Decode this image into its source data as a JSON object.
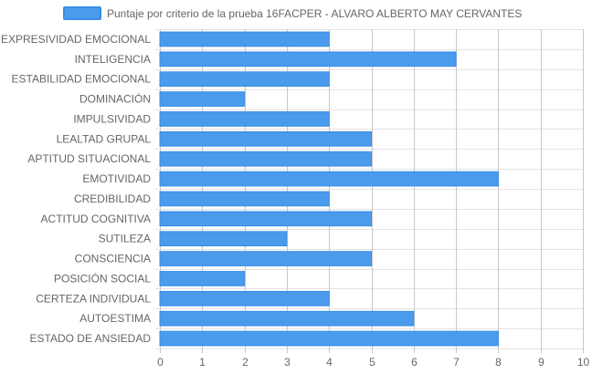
{
  "chart_data": {
    "type": "bar",
    "orientation": "horizontal",
    "legend": {
      "position": "top",
      "label": "Puntaje por criterio de la prueba 16FACPER - ALVARO ALBERTO MAY CERVANTES"
    },
    "categories": [
      "EXPRESIVIDAD EMOCIONAL",
      "INTELIGENCIA",
      "ESTABILIDAD EMOCIONAL",
      "DOMINACIÓN",
      "IMPULSIVIDAD",
      "LEALTAD GRUPAL",
      "APTITUD SITUACIONAL",
      "EMOTIVIDAD",
      "CREDIBILIDAD",
      "ACTITUD COGNITIVA",
      "SUTILEZA",
      "CONSCIENCIA",
      "POSICIÓN SOCIAL",
      "CERTEZA INDIVIDUAL",
      "AUTOESTIMA",
      "ESTADO DE ANSIEDAD"
    ],
    "series": [
      {
        "name": "Puntaje por criterio de la prueba 16FACPER - ALVARO ALBERTO MAY CERVANTES",
        "values": [
          4,
          7,
          4,
          2,
          4,
          5,
          5,
          8,
          4,
          5,
          3,
          5,
          2,
          4,
          6,
          8
        ]
      }
    ],
    "xlim": [
      0,
      10
    ],
    "xticks": [
      0,
      1,
      2,
      3,
      4,
      5,
      6,
      7,
      8,
      9,
      10
    ],
    "grid": true,
    "colors": {
      "bar_fill": "#4A9BEB",
      "bar_stroke": "#3A8DE6",
      "grid": "#E3E3E3",
      "grid_vertical": "#C8C8C8",
      "text": "#666666"
    }
  }
}
